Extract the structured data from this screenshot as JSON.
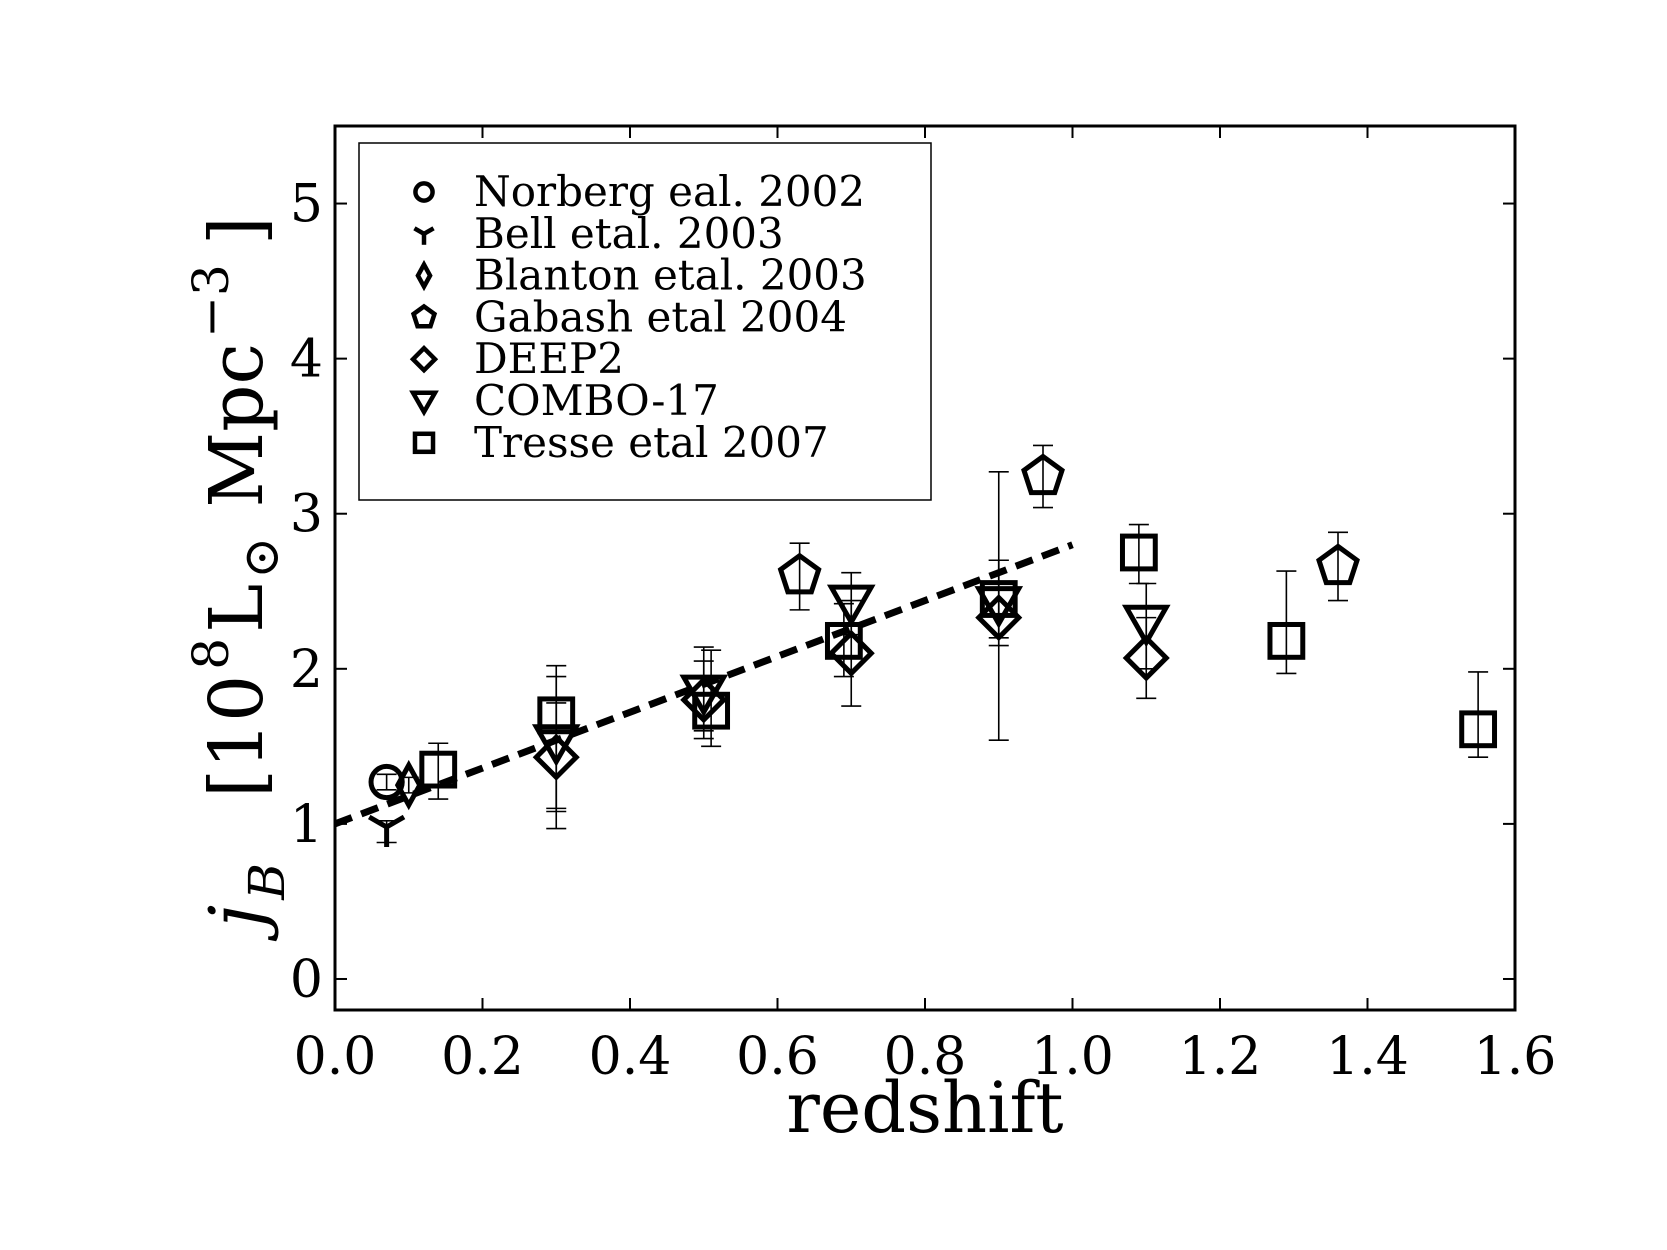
{
  "chart_data": {
    "type": "scatter",
    "xlabel": "redshift",
    "ylabel": {
      "base": "j",
      "sub": "B",
      "unit_text": "[10",
      "unit_exp": "8",
      "unit_L": "L",
      "unit_sun": "⊙",
      "unit_mpc": "Mpc",
      "unit_exp2": "−3",
      "unit_close": "]"
    },
    "xlim": [
      0.0,
      1.6
    ],
    "ylim": [
      -0.2,
      5.5
    ],
    "xticks": [
      "0.0",
      "0.2",
      "0.4",
      "0.6",
      "0.8",
      "1.0",
      "1.2",
      "1.4",
      "1.6"
    ],
    "xtick_values": [
      0.0,
      0.2,
      0.4,
      0.6,
      0.8,
      1.0,
      1.2,
      1.4,
      1.6
    ],
    "yticks": [
      "0",
      "1",
      "2",
      "3",
      "4",
      "5"
    ],
    "ytick_values": [
      0,
      1,
      2,
      3,
      4,
      5
    ],
    "legend_position": "top-left",
    "series": [
      {
        "name": "Norberg eal. 2002",
        "marker": "circle",
        "points": [
          {
            "x": 0.07,
            "y": 1.27,
            "ylo": 1.22,
            "yhi": 1.32
          }
        ]
      },
      {
        "name": "Bell etal. 2003",
        "marker": "tri_down",
        "points": [
          {
            "x": 0.07,
            "y": 0.98,
            "ylo": 0.88,
            "yhi": 1.02
          }
        ]
      },
      {
        "name": "Blanton etal. 2003",
        "marker": "thin_diamond",
        "points": [
          {
            "x": 0.1,
            "y": 1.25,
            "ylo": 1.2,
            "yhi": 1.3
          }
        ]
      },
      {
        "name": "Gabash etal 2004",
        "marker": "pentagon",
        "points": [
          {
            "x": 0.63,
            "y": 2.6,
            "ylo": 2.38,
            "yhi": 2.81
          },
          {
            "x": 0.96,
            "y": 3.24,
            "ylo": 3.04,
            "yhi": 3.44
          },
          {
            "x": 1.36,
            "y": 2.66,
            "ylo": 2.44,
            "yhi": 2.88
          }
        ]
      },
      {
        "name": "DEEP2",
        "marker": "diamond",
        "points": [
          {
            "x": 0.3,
            "y": 1.43,
            "ylo": 1.08,
            "yhi": 1.78
          },
          {
            "x": 0.5,
            "y": 1.8,
            "ylo": 1.55,
            "yhi": 2.05
          },
          {
            "x": 0.7,
            "y": 2.1,
            "ylo": 1.76,
            "yhi": 2.44
          },
          {
            "x": 0.9,
            "y": 2.33,
            "ylo": 1.54,
            "yhi": 3.27
          },
          {
            "x": 1.1,
            "y": 2.07,
            "ylo": 1.81,
            "yhi": 2.33
          }
        ]
      },
      {
        "name": "COMBO-17",
        "marker": "triangle_down",
        "points": [
          {
            "x": 0.3,
            "y": 1.53,
            "ylo": 1.1,
            "yhi": 1.95
          },
          {
            "x": 0.5,
            "y": 1.85,
            "ylo": 1.6,
            "yhi": 2.14
          },
          {
            "x": 0.7,
            "y": 2.43,
            "ylo": 2.22,
            "yhi": 2.62
          },
          {
            "x": 0.9,
            "y": 2.42,
            "ylo": 2.15,
            "yhi": 2.7
          },
          {
            "x": 1.1,
            "y": 2.3,
            "ylo": 2.0,
            "yhi": 2.55
          }
        ]
      },
      {
        "name": "Tresse etal 2007",
        "marker": "square",
        "points": [
          {
            "x": 0.14,
            "y": 1.35,
            "ylo": 1.16,
            "yhi": 1.52
          },
          {
            "x": 0.3,
            "y": 1.7,
            "ylo": 0.97,
            "yhi": 2.02
          },
          {
            "x": 0.51,
            "y": 1.73,
            "ylo": 1.5,
            "yhi": 2.12
          },
          {
            "x": 0.69,
            "y": 2.18,
            "ylo": 1.95,
            "yhi": 2.42
          },
          {
            "x": 0.9,
            "y": 2.45,
            "ylo": 2.2,
            "yhi": 2.7
          },
          {
            "x": 1.09,
            "y": 2.75,
            "ylo": 2.55,
            "yhi": 2.93
          },
          {
            "x": 1.29,
            "y": 2.18,
            "ylo": 1.97,
            "yhi": 2.63
          },
          {
            "x": 1.55,
            "y": 1.61,
            "ylo": 1.43,
            "yhi": 1.98
          }
        ]
      }
    ],
    "fit_line": {
      "style": "dashed",
      "x": [
        0.0,
        1.0
      ],
      "y": [
        1.0,
        2.8
      ]
    }
  }
}
